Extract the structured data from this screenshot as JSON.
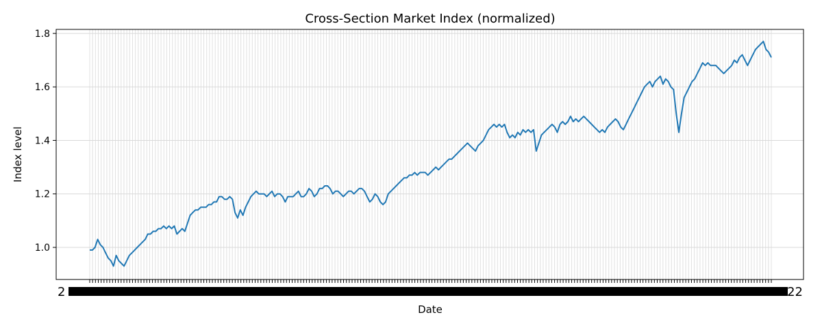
{
  "chart_data": {
    "type": "line",
    "title": "Cross-Section Market Index (normalized)",
    "xlabel": "Date",
    "ylabel": "Index level",
    "ylim": [
      0.88,
      1.815
    ],
    "yticks": [
      1.0,
      1.2,
      1.4,
      1.6,
      1.8
    ],
    "ytick_labels": [
      "1.0",
      "1.2",
      "1.4",
      "1.6",
      "1.8"
    ],
    "x_tick_count": 240,
    "x_tick_labels_overlapping": true,
    "x_tick_edge_labels": [
      "2",
      "22"
    ],
    "grid": true,
    "series": [
      {
        "color": "#1f77b4",
        "values": [
          0.99,
          0.99,
          1.0,
          1.03,
          1.01,
          1.0,
          0.98,
          0.96,
          0.95,
          0.93,
          0.97,
          0.95,
          0.94,
          0.93,
          0.95,
          0.97,
          0.98,
          0.99,
          1.0,
          1.01,
          1.02,
          1.03,
          1.05,
          1.05,
          1.06,
          1.06,
          1.07,
          1.07,
          1.08,
          1.07,
          1.08,
          1.07,
          1.08,
          1.05,
          1.06,
          1.07,
          1.06,
          1.09,
          1.12,
          1.13,
          1.14,
          1.14,
          1.15,
          1.15,
          1.15,
          1.16,
          1.16,
          1.17,
          1.17,
          1.19,
          1.19,
          1.18,
          1.18,
          1.19,
          1.18,
          1.13,
          1.11,
          1.14,
          1.12,
          1.15,
          1.17,
          1.19,
          1.2,
          1.21,
          1.2,
          1.2,
          1.2,
          1.19,
          1.2,
          1.21,
          1.19,
          1.2,
          1.2,
          1.19,
          1.17,
          1.19,
          1.19,
          1.19,
          1.2,
          1.21,
          1.19,
          1.19,
          1.2,
          1.22,
          1.21,
          1.19,
          1.2,
          1.22,
          1.22,
          1.23,
          1.23,
          1.22,
          1.2,
          1.21,
          1.21,
          1.2,
          1.19,
          1.2,
          1.21,
          1.21,
          1.2,
          1.21,
          1.22,
          1.22,
          1.21,
          1.19,
          1.17,
          1.18,
          1.2,
          1.19,
          1.17,
          1.16,
          1.17,
          1.2,
          1.21,
          1.22,
          1.23,
          1.24,
          1.25,
          1.26,
          1.26,
          1.27,
          1.27,
          1.28,
          1.27,
          1.28,
          1.28,
          1.28,
          1.27,
          1.28,
          1.29,
          1.3,
          1.29,
          1.3,
          1.31,
          1.32,
          1.33,
          1.33,
          1.34,
          1.35,
          1.36,
          1.37,
          1.38,
          1.39,
          1.38,
          1.37,
          1.36,
          1.38,
          1.39,
          1.4,
          1.42,
          1.44,
          1.45,
          1.46,
          1.45,
          1.46,
          1.45,
          1.46,
          1.43,
          1.41,
          1.42,
          1.41,
          1.43,
          1.42,
          1.44,
          1.43,
          1.44,
          1.43,
          1.44,
          1.36,
          1.39,
          1.42,
          1.43,
          1.44,
          1.45,
          1.46,
          1.45,
          1.43,
          1.46,
          1.47,
          1.46,
          1.47,
          1.49,
          1.47,
          1.48,
          1.47,
          1.48,
          1.49,
          1.48,
          1.47,
          1.46,
          1.45,
          1.44,
          1.43,
          1.44,
          1.43,
          1.45,
          1.46,
          1.47,
          1.48,
          1.47,
          1.45,
          1.44,
          1.46,
          1.48,
          1.5,
          1.52,
          1.54,
          1.56,
          1.58,
          1.6,
          1.61,
          1.62,
          1.6,
          1.62,
          1.63,
          1.64,
          1.61,
          1.63,
          1.62,
          1.6,
          1.59,
          1.5,
          1.43,
          1.5,
          1.56,
          1.58,
          1.6,
          1.62,
          1.63,
          1.65,
          1.67,
          1.69,
          1.68,
          1.69,
          1.68,
          1.68,
          1.68,
          1.67,
          1.66,
          1.65,
          1.66,
          1.67,
          1.68,
          1.7,
          1.69,
          1.71,
          1.72,
          1.7,
          1.68,
          1.7,
          1.72,
          1.74,
          1.75,
          1.76,
          1.77,
          1.74,
          1.73,
          1.71
        ]
      }
    ]
  }
}
